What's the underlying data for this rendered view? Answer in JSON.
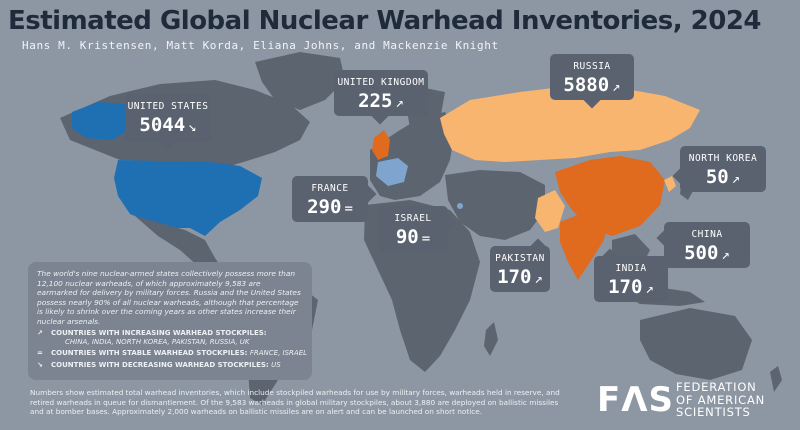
{
  "header": {
    "title": "Estimated Global Nuclear Warhead Inventories, 2024",
    "authors": "Hans M. Kristensen, Matt Korda, Eliana Johns, and Mackenzie Knight"
  },
  "colors": {
    "ocean": "#8d96a3",
    "land": "#5c6470",
    "increasing_light": "#f7b56f",
    "increasing_dark": "#e06a1e",
    "stable": "#7fa5cf",
    "decreasing": "#1f6fb3",
    "callout_bg": "#5a6270"
  },
  "countries": {
    "us": {
      "name": "UNITED STATES",
      "count": "5044",
      "trend": "↘",
      "trend_name": "decreasing-arrow-icon"
    },
    "uk": {
      "name": "UNITED KINGDOM",
      "count": "225",
      "trend": "↗",
      "trend_name": "increasing-arrow-icon"
    },
    "ru": {
      "name": "RUSSIA",
      "count": "5880",
      "trend": "↗",
      "trend_name": "increasing-arrow-icon"
    },
    "fr": {
      "name": "FRANCE",
      "count": "290",
      "trend": "=",
      "trend_name": "stable-equals-icon"
    },
    "il": {
      "name": "ISRAEL",
      "count": "90",
      "trend": "=",
      "trend_name": "stable-equals-icon"
    },
    "nk": {
      "name": "NORTH KOREA",
      "count": "50",
      "trend": "↗",
      "trend_name": "increasing-arrow-icon"
    },
    "cn": {
      "name": "CHINA",
      "count": "500",
      "trend": "↗",
      "trend_name": "increasing-arrow-icon"
    },
    "pk": {
      "name": "PAKISTAN",
      "count": "170",
      "trend": "↗",
      "trend_name": "increasing-arrow-icon"
    },
    "in": {
      "name": "INDIA",
      "count": "170",
      "trend": "↗",
      "trend_name": "increasing-arrow-icon"
    }
  },
  "info": {
    "paragraph": "The world's nine nuclear-armed states collectively possess more than 12,100 nuclear warheads, of which approximately 9,583 are earmarked for delivery by military forces. Russia and the United States possess nearly 90% of all nuclear warheads, although that percentage is likely to shrink over the coming years as other states increase their nuclear arsenals.",
    "increasing_label": "COUNTRIES WITH INCREASING WARHEAD STOCKPILES:",
    "increasing_list": "CHINA, INDIA, NORTH KOREA, PAKISTAN, RUSSIA, UK",
    "stable_label": "COUNTRIES WITH STABLE WARHEAD STOCKPILES:",
    "stable_list": "FRANCE, ISRAEL",
    "decreasing_label": "COUNTRIES WITH DECREASING WARHEAD STOCKPILES:",
    "decreasing_list": "US",
    "increasing_symbol": "↗",
    "stable_symbol": "=",
    "decreasing_symbol": "↘"
  },
  "footnote": "Numbers show estimated total warhead inventories, which include stockpiled warheads for use by military forces, warheads held in reserve, and retired warheads in queue for dismantlement. Of the 9,583 warheads in global military stockpiles, about 3,880 are deployed on ballistic missiles and at bomber bases. Approximately 2,000 warheads on ballistic missiles are on alert and can be launched on short notice.",
  "logo": {
    "mark": "FΛS",
    "line1": "FEDERATION",
    "line2": "OF AMERICAN",
    "line3": "SCIENTISTS"
  }
}
